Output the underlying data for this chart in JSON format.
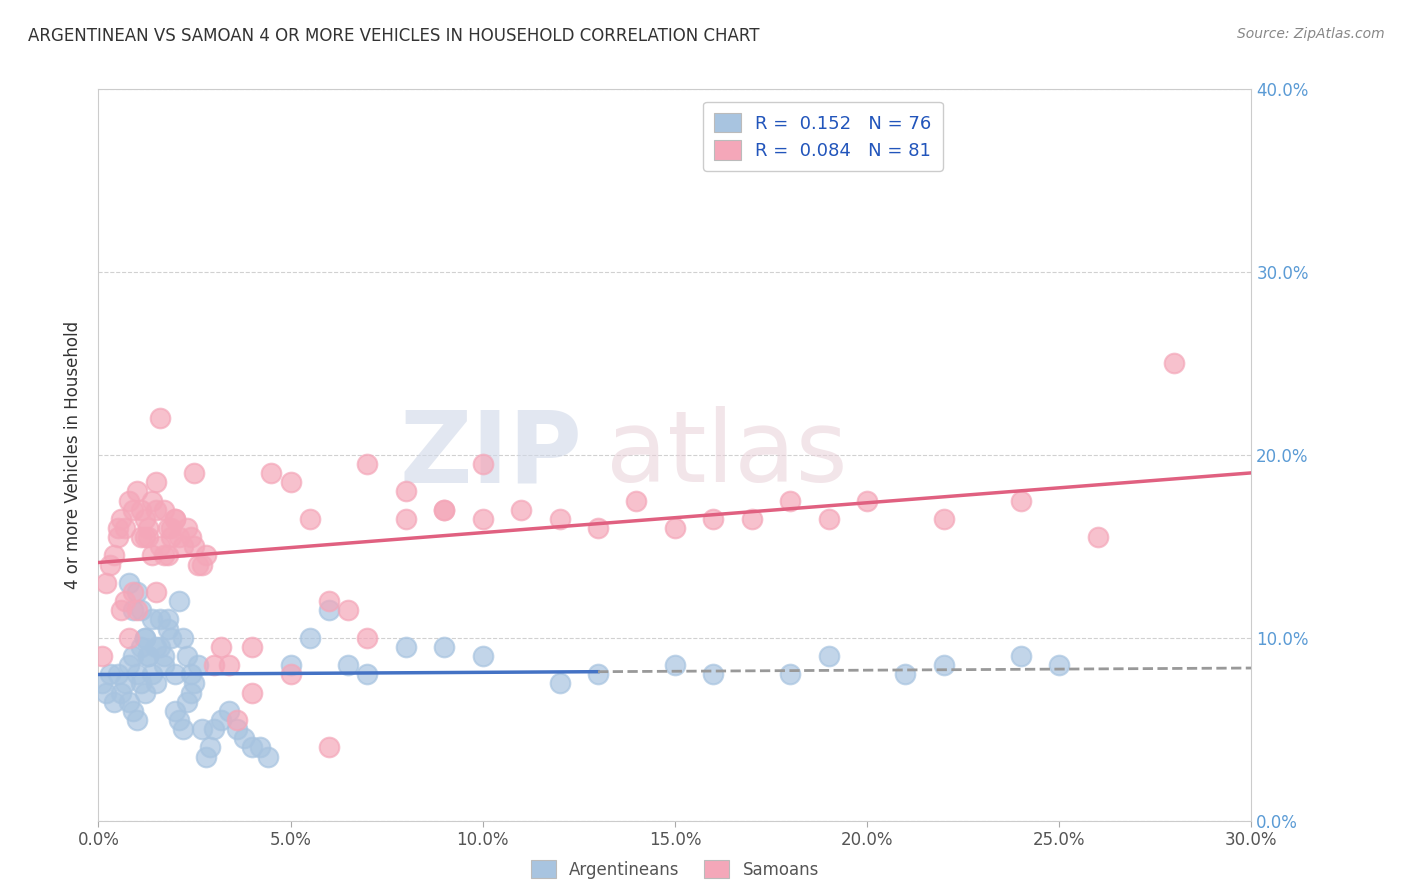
{
  "title": "ARGENTINEAN VS SAMOAN 4 OR MORE VEHICLES IN HOUSEHOLD CORRELATION CHART",
  "source": "Source: ZipAtlas.com",
  "ylabel_label": "4 or more Vehicles in Household",
  "xlim": [
    0.0,
    0.3
  ],
  "ylim": [
    0.0,
    0.4
  ],
  "watermark_zip": "ZIP",
  "watermark_atlas": "atlas",
  "legend_label1": "R =  0.152   N = 76",
  "legend_label2": "R =  0.084   N = 81",
  "legend_bottom_label1": "Argentineans",
  "legend_bottom_label2": "Samoans",
  "color_blue": "#a8c4e0",
  "color_pink": "#f4a7b9",
  "trend_blue": "#4472c4",
  "trend_pink": "#e06080",
  "trend_dashed_color": "#999999",
  "right_tick_color": "#5b9bd5",
  "argentinean_x": [
    0.001,
    0.002,
    0.003,
    0.004,
    0.005,
    0.006,
    0.007,
    0.008,
    0.009,
    0.01,
    0.011,
    0.012,
    0.013,
    0.014,
    0.015,
    0.016,
    0.017,
    0.018,
    0.019,
    0.02,
    0.021,
    0.022,
    0.023,
    0.024,
    0.008,
    0.009,
    0.01,
    0.011,
    0.012,
    0.013,
    0.014,
    0.015,
    0.016,
    0.017,
    0.018,
    0.008,
    0.009,
    0.01,
    0.011,
    0.012,
    0.02,
    0.021,
    0.022,
    0.023,
    0.024,
    0.025,
    0.026,
    0.027,
    0.028,
    0.029,
    0.03,
    0.032,
    0.034,
    0.036,
    0.038,
    0.04,
    0.042,
    0.044,
    0.05,
    0.055,
    0.06,
    0.065,
    0.07,
    0.08,
    0.09,
    0.1,
    0.12,
    0.13,
    0.15,
    0.16,
    0.18,
    0.19,
    0.21,
    0.22,
    0.24,
    0.25
  ],
  "argentinean_y": [
    0.075,
    0.07,
    0.08,
    0.065,
    0.08,
    0.07,
    0.075,
    0.085,
    0.09,
    0.08,
    0.095,
    0.1,
    0.09,
    0.08,
    0.075,
    0.11,
    0.09,
    0.105,
    0.1,
    0.08,
    0.12,
    0.1,
    0.09,
    0.08,
    0.13,
    0.115,
    0.125,
    0.115,
    0.1,
    0.09,
    0.11,
    0.095,
    0.095,
    0.085,
    0.11,
    0.065,
    0.06,
    0.055,
    0.075,
    0.07,
    0.06,
    0.055,
    0.05,
    0.065,
    0.07,
    0.075,
    0.085,
    0.05,
    0.035,
    0.04,
    0.05,
    0.055,
    0.06,
    0.05,
    0.045,
    0.04,
    0.04,
    0.035,
    0.085,
    0.1,
    0.115,
    0.085,
    0.08,
    0.095,
    0.095,
    0.09,
    0.075,
    0.08,
    0.085,
    0.08,
    0.08,
    0.09,
    0.08,
    0.085,
    0.09,
    0.085
  ],
  "samoan_x": [
    0.001,
    0.002,
    0.003,
    0.004,
    0.005,
    0.006,
    0.007,
    0.008,
    0.009,
    0.01,
    0.011,
    0.012,
    0.013,
    0.014,
    0.015,
    0.016,
    0.017,
    0.018,
    0.019,
    0.02,
    0.005,
    0.006,
    0.007,
    0.008,
    0.009,
    0.01,
    0.011,
    0.012,
    0.013,
    0.014,
    0.015,
    0.016,
    0.017,
    0.018,
    0.019,
    0.02,
    0.021,
    0.022,
    0.023,
    0.024,
    0.025,
    0.026,
    0.027,
    0.028,
    0.03,
    0.032,
    0.034,
    0.036,
    0.04,
    0.045,
    0.05,
    0.055,
    0.06,
    0.065,
    0.07,
    0.08,
    0.09,
    0.1,
    0.12,
    0.14,
    0.16,
    0.18,
    0.2,
    0.22,
    0.24,
    0.26,
    0.04,
    0.05,
    0.06,
    0.07,
    0.08,
    0.09,
    0.1,
    0.11,
    0.13,
    0.15,
    0.17,
    0.19,
    0.28,
    0.015,
    0.025
  ],
  "samoan_y": [
    0.09,
    0.13,
    0.14,
    0.145,
    0.16,
    0.115,
    0.12,
    0.1,
    0.125,
    0.115,
    0.17,
    0.155,
    0.155,
    0.145,
    0.125,
    0.15,
    0.145,
    0.145,
    0.16,
    0.165,
    0.155,
    0.165,
    0.16,
    0.175,
    0.17,
    0.18,
    0.155,
    0.165,
    0.16,
    0.175,
    0.17,
    0.22,
    0.17,
    0.16,
    0.155,
    0.165,
    0.155,
    0.15,
    0.16,
    0.155,
    0.15,
    0.14,
    0.14,
    0.145,
    0.085,
    0.095,
    0.085,
    0.055,
    0.095,
    0.19,
    0.185,
    0.165,
    0.12,
    0.115,
    0.1,
    0.18,
    0.17,
    0.195,
    0.165,
    0.175,
    0.165,
    0.175,
    0.175,
    0.165,
    0.175,
    0.155,
    0.07,
    0.08,
    0.04,
    0.195,
    0.165,
    0.17,
    0.165,
    0.17,
    0.16,
    0.16,
    0.165,
    0.165,
    0.25,
    0.185,
    0.19
  ]
}
